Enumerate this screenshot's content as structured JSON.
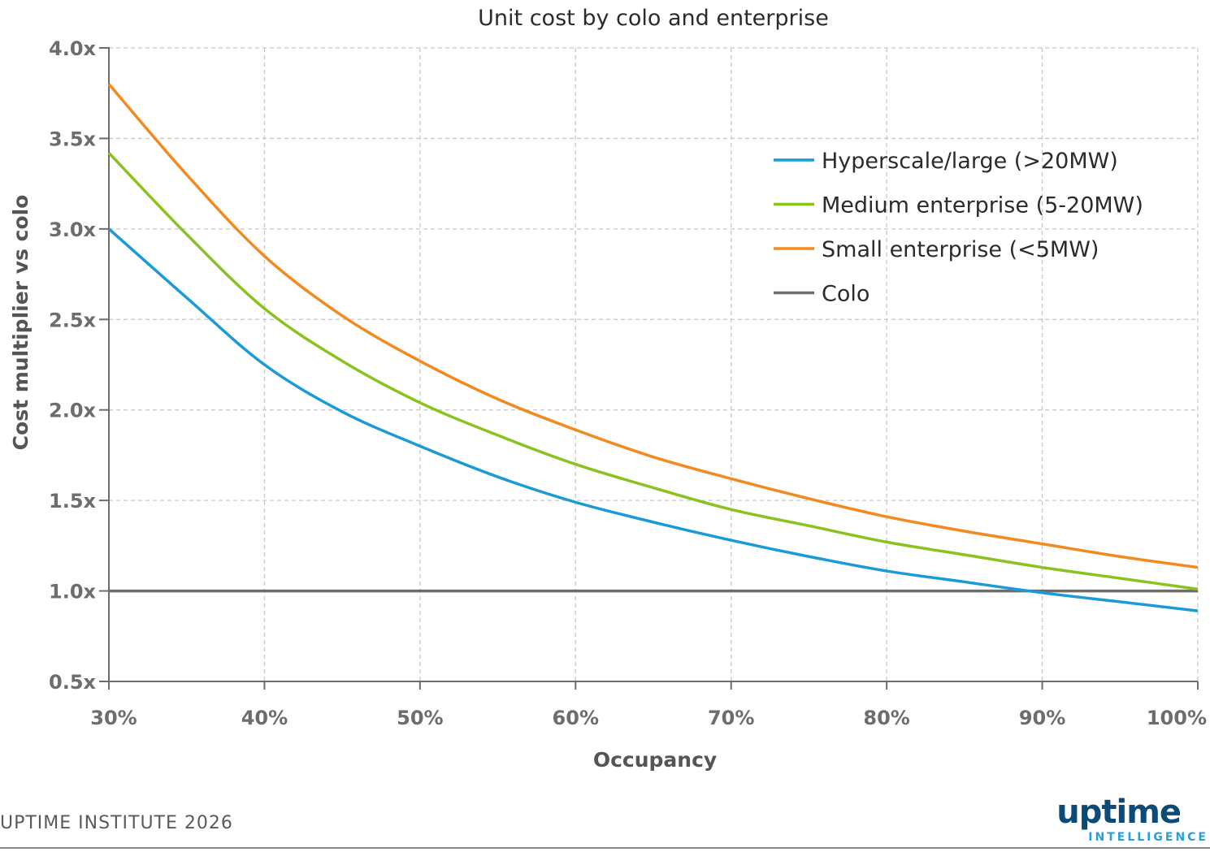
{
  "chart_data": {
    "type": "line",
    "title": "Unit cost by colo and enterprise",
    "xlabel": "Occupancy",
    "ylabel": "Cost multiplier vs colo",
    "x": [
      30,
      35,
      40,
      45,
      50,
      55,
      60,
      65,
      70,
      75,
      80,
      85,
      90,
      95,
      100
    ],
    "xlim": [
      30,
      100
    ],
    "ylim": [
      0.5,
      4.0
    ],
    "x_ticks": [
      30,
      40,
      50,
      60,
      70,
      80,
      90,
      100
    ],
    "x_tick_labels": [
      "30%",
      "40%",
      "50%",
      "60%",
      "70%",
      "80%",
      "90%",
      "100%"
    ],
    "y_ticks": [
      0.5,
      1.0,
      1.5,
      2.0,
      2.5,
      3.0,
      3.5,
      4.0
    ],
    "y_tick_labels": [
      "0.5x",
      "1.0x",
      "1.5x",
      "2.0x",
      "2.5x",
      "3.0x",
      "3.5x",
      "4.0x"
    ],
    "grid": true,
    "legend_position": "top-right",
    "series": [
      {
        "name": "Hyperscale/large (>20MW)",
        "color": "#1a9bd7",
        "values": [
          3.0,
          2.62,
          2.25,
          1.99,
          1.8,
          1.63,
          1.49,
          1.38,
          1.28,
          1.19,
          1.11,
          1.05,
          0.99,
          0.94,
          0.89
        ]
      },
      {
        "name": "Medium enterprise (5-20MW)",
        "color": "#8cc21e",
        "values": [
          3.42,
          2.97,
          2.56,
          2.27,
          2.04,
          1.86,
          1.7,
          1.57,
          1.45,
          1.36,
          1.27,
          1.2,
          1.13,
          1.07,
          1.01
        ]
      },
      {
        "name": "Small enterprise (<5MW)",
        "color": "#f38a1f",
        "values": [
          3.8,
          3.3,
          2.85,
          2.52,
          2.27,
          2.06,
          1.89,
          1.74,
          1.62,
          1.51,
          1.41,
          1.33,
          1.26,
          1.19,
          1.13
        ]
      },
      {
        "name": "Colo",
        "color": "#6d6d6d",
        "values": [
          1.0,
          1.0,
          1.0,
          1.0,
          1.0,
          1.0,
          1.0,
          1.0,
          1.0,
          1.0,
          1.0,
          1.0,
          1.0,
          1.0,
          1.0
        ]
      }
    ]
  },
  "footer": {
    "source": "UPTIME INSTITUTE 2026",
    "logo_main": "uptime",
    "logo_sub": "INTELLIGENCE"
  }
}
